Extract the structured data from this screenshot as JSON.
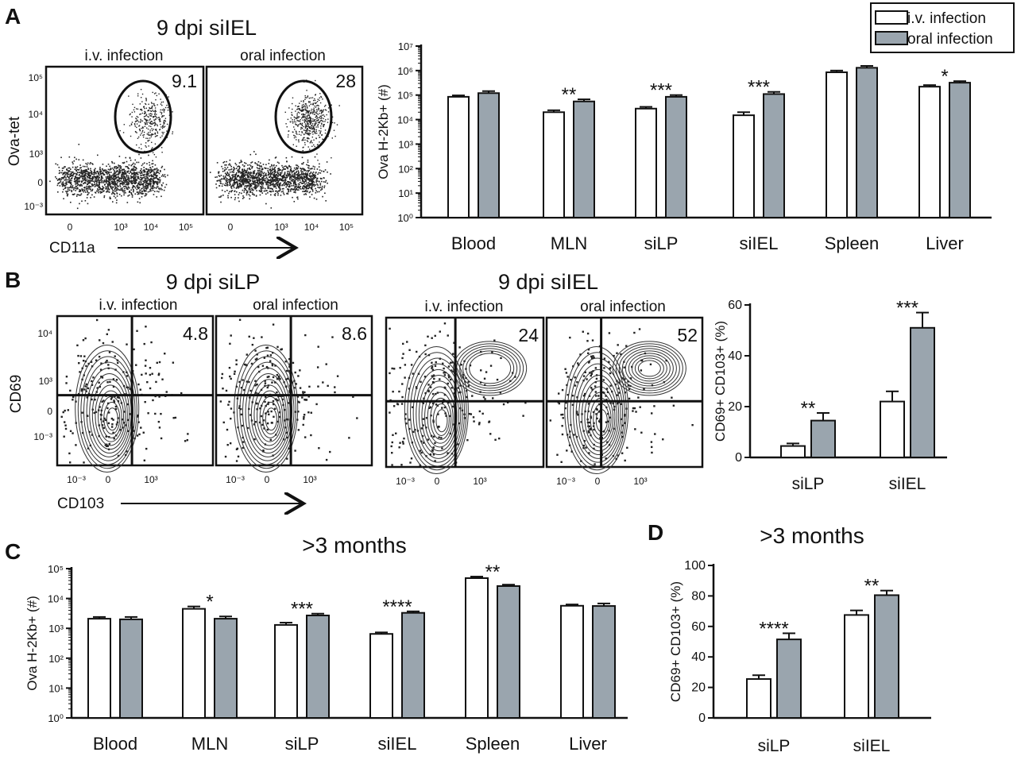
{
  "panel_labels": [
    "A",
    "B",
    "C",
    "D"
  ],
  "legend": {
    "entries": [
      {
        "label": "i.v. infection",
        "color": "#ffffff"
      },
      {
        "label": "oral infection",
        "color": "#9aa5ae"
      }
    ]
  },
  "colors": {
    "iv": "#ffffff",
    "oral": "#9aa5ae",
    "ink": "#111111",
    "contour": "#333333"
  },
  "flow_plots": {
    "A": {
      "title": "9 dpi siIEL",
      "plots": [
        {
          "subtitle": "i.v. infection",
          "gate_percent": "9.1"
        },
        {
          "subtitle": "oral infection",
          "gate_percent": "28"
        }
      ],
      "y_axis_label": "Ova-tet",
      "x_axis_label": "CD11a",
      "y_ticks": [
        "10⁵",
        "10⁴",
        "10³",
        "0",
        "10⁻³"
      ],
      "x_ticks": [
        "0",
        "10³",
        "10⁴",
        "10⁵"
      ]
    },
    "B_siLP": {
      "title": "9 dpi siLP",
      "plots": [
        {
          "subtitle": "i.v. infection",
          "quadrant_percent": "4.8"
        },
        {
          "subtitle": "oral infection",
          "quadrant_percent": "8.6"
        }
      ],
      "y_axis_label": "CD69",
      "x_axis_label": "CD103",
      "y_ticks": [
        "10⁴",
        "10³",
        "0",
        "10⁻³"
      ],
      "x_ticks": [
        "10⁻³",
        "0",
        "10³"
      ]
    },
    "B_siIEL": {
      "title": "9 dpi siIEL",
      "plots": [
        {
          "subtitle": "i.v. infection",
          "quadrant_percent": "24"
        },
        {
          "subtitle": "oral infection",
          "quadrant_percent": "52"
        }
      ],
      "x_ticks": [
        "10⁻³",
        "0",
        "10³"
      ]
    }
  },
  "chart_data": [
    {
      "id": "A-bar",
      "type": "bar",
      "scale": "log",
      "title": "",
      "ylabel": "Ova H-2Kb+ (#)",
      "ylim": [
        1,
        10000000
      ],
      "y_ticks": [
        "10⁰",
        "10¹",
        "10²",
        "10³",
        "10⁴",
        "10⁵",
        "10⁶",
        "10⁷"
      ],
      "categories": [
        "Blood",
        "MLN",
        "siLP",
        "siIEL",
        "Spleen",
        "Liver"
      ],
      "series": [
        {
          "name": "i.v. infection",
          "values": [
            85000,
            20000,
            28000,
            15000,
            850000,
            220000
          ],
          "errors": [
            12000,
            4000,
            5000,
            5000,
            150000,
            35000
          ]
        },
        {
          "name": "oral infection",
          "values": [
            120000,
            55000,
            85000,
            110000,
            1300000,
            320000
          ],
          "errors": [
            25000,
            12000,
            15000,
            25000,
            250000,
            50000
          ]
        }
      ],
      "significance": [
        "",
        "**",
        "***",
        "***",
        "",
        "*"
      ]
    },
    {
      "id": "B-bar",
      "type": "bar",
      "scale": "linear",
      "title": "",
      "ylabel": "CD69+ CD103+ (%)",
      "ylim": [
        0,
        60
      ],
      "y_ticks": [
        "0",
        "20",
        "40",
        "60"
      ],
      "categories": [
        "siLP",
        "siIEL"
      ],
      "series": [
        {
          "name": "i.v. infection",
          "values": [
            4.5,
            22
          ],
          "errors": [
            1,
            4
          ]
        },
        {
          "name": "oral infection",
          "values": [
            14.5,
            51
          ],
          "errors": [
            3,
            6
          ]
        }
      ],
      "significance": [
        "**",
        "***"
      ]
    },
    {
      "id": "C-bar",
      "type": "bar",
      "scale": "log",
      "title": ">3 months",
      "ylabel": "Ova H-2Kb+ (#)",
      "ylim": [
        1,
        100000
      ],
      "y_ticks": [
        "10⁰",
        "10¹",
        "10²",
        "10³",
        "10⁴",
        "10⁵"
      ],
      "categories": [
        "Blood",
        "MLN",
        "siLP",
        "siIEL",
        "Spleen",
        "Liver"
      ],
      "series": [
        {
          "name": "i.v. infection",
          "values": [
            2100,
            4500,
            1300,
            650,
            48000,
            5700
          ],
          "errors": [
            300,
            900,
            250,
            80,
            6000,
            600
          ]
        },
        {
          "name": "oral infection",
          "values": [
            2000,
            2100,
            2700,
            3300,
            26000,
            5600
          ],
          "errors": [
            400,
            400,
            400,
            400,
            3000,
            1200
          ]
        }
      ],
      "significance": [
        "",
        "*",
        "***",
        "****",
        "**",
        ""
      ]
    },
    {
      "id": "D-bar",
      "type": "bar",
      "scale": "linear",
      "title": ">3 months",
      "ylabel": "CD69+ CD103+ (%)",
      "ylim": [
        0,
        100
      ],
      "y_ticks": [
        "0",
        "20",
        "40",
        "60",
        "80",
        "100"
      ],
      "categories": [
        "siLP",
        "siIEL"
      ],
      "series": [
        {
          "name": "i.v. infection",
          "values": [
            25.5,
            67.5
          ],
          "errors": [
            2.5,
            3
          ]
        },
        {
          "name": "oral infection",
          "values": [
            51.5,
            80.5
          ],
          "errors": [
            4,
            3
          ]
        }
      ],
      "significance": [
        "****",
        "**"
      ]
    }
  ]
}
